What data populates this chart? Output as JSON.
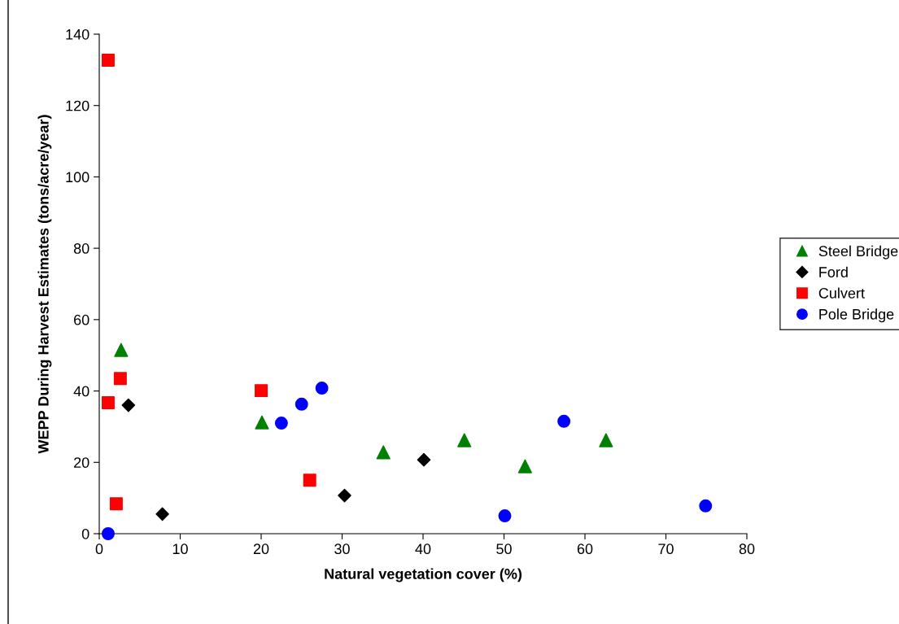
{
  "chart_data": {
    "type": "scatter",
    "xlabel": "Natural vegetation cover (%)",
    "ylabel": "WEPP During Harvest Estimates (tons/acre/year)",
    "xlim": [
      0,
      80
    ],
    "xticks": [
      0,
      10,
      20,
      30,
      40,
      50,
      60,
      70,
      80
    ],
    "ylim": [
      0,
      140
    ],
    "yticks": [
      0,
      20,
      40,
      60,
      80,
      100,
      120,
      140
    ],
    "grid": false,
    "legend": "right",
    "series": [
      {
        "name": "Steel Bridge",
        "color": "#008000",
        "marker": "triangle",
        "x": [
          2.7,
          20.1,
          35.1,
          45.1,
          52.6,
          62.6
        ],
        "values": [
          51.5,
          31.2,
          22.8,
          26.2,
          18.9,
          26.2
        ]
      },
      {
        "name": "Ford",
        "color": "#000000",
        "marker": "diamond",
        "x": [
          3.6,
          7.8,
          30.3,
          40.1
        ],
        "values": [
          36.0,
          5.5,
          10.7,
          20.7
        ]
      },
      {
        "name": "Culvert",
        "color": "#ff0000",
        "marker": "square",
        "x": [
          1.1,
          1.1,
          2.6,
          2.1,
          20.0,
          26.0
        ],
        "values": [
          132.7,
          36.7,
          43.5,
          8.4,
          40.1,
          15.0
        ]
      },
      {
        "name": "Pole Bridge",
        "color": "#0000ff",
        "marker": "circle",
        "x": [
          1.1,
          22.5,
          25.0,
          27.5,
          50.1,
          57.4,
          74.9
        ],
        "values": [
          0,
          31.0,
          36.3,
          40.8,
          5.0,
          31.5,
          7.8
        ]
      }
    ]
  }
}
